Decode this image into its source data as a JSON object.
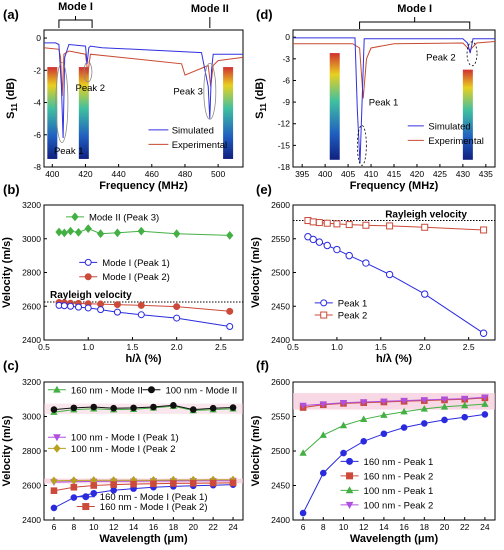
{
  "figure": {
    "panel_letters": [
      "(a)",
      "(b)",
      "(c)",
      "(d)",
      "(e)",
      "(f)"
    ],
    "colors": {
      "simulated": "#3030e0",
      "experimental": "#c84a32",
      "mode2": "#3aa83a",
      "blue": "#2a2adf",
      "red": "#cc4a3a",
      "green": "#44b044",
      "purple": "#b050e0",
      "olive": "#b8a020",
      "black": "#111111",
      "shade": "#f4c8d8"
    }
  },
  "chart_data": [
    {
      "id": "a",
      "type": "line",
      "xlabel": "Frequency (MHz)",
      "ylabel": "S11 (dB)",
      "xlim": [
        395,
        515
      ],
      "ylim": [
        -8,
        0.5
      ],
      "xticks": [
        400,
        420,
        440,
        460,
        480,
        500
      ],
      "yticks": [
        0,
        -2,
        -4,
        -6,
        -8
      ],
      "annotations": [
        "Mode I",
        "Mode II",
        "Peak 1",
        "Peak 2",
        "Peak 3"
      ],
      "legend": [
        "Simulated",
        "Experimental"
      ],
      "legend_position": "bottom-right",
      "series": [
        {
          "name": "Simulated",
          "x": [
            395,
            402,
            404,
            405.5,
            406.5,
            407.5,
            410,
            420,
            421,
            422,
            423,
            430,
            490,
            494,
            495,
            496,
            497,
            500,
            515
          ],
          "y": [
            -0.3,
            -0.3,
            -0.4,
            -3.0,
            -6.2,
            -1.2,
            -0.4,
            -0.5,
            -1.6,
            -0.6,
            -0.5,
            -0.6,
            -0.9,
            -3.0,
            -5.0,
            -2.0,
            -1.0,
            -1.0,
            -1.0
          ]
        },
        {
          "name": "Experimental",
          "x": [
            395,
            404,
            405,
            406,
            407,
            410,
            420,
            421.5,
            423,
            460,
            478,
            480,
            494,
            495.5,
            497,
            500,
            515
          ],
          "y": [
            -0.6,
            -0.7,
            -1.2,
            -3.6,
            -1.0,
            -0.8,
            -1.0,
            -2.2,
            -1.0,
            -1.4,
            -1.6,
            -2.3,
            -1.7,
            -3.0,
            -1.7,
            -1.4,
            -1.2
          ]
        }
      ]
    },
    {
      "id": "b",
      "type": "scatter",
      "xlabel": "h/λ (%)",
      "ylabel": "Velocity (m/s)",
      "xlim": [
        0.5,
        2.75
      ],
      "ylim": [
        2400,
        3200
      ],
      "xticks": [
        0.5,
        1.0,
        1.5,
        2.0,
        2.5
      ],
      "yticks": [
        2400,
        2600,
        2800,
        3000,
        3200
      ],
      "reference_line": {
        "label": "Rayleigh velocity",
        "value": 2625
      },
      "legend_position": "right",
      "series": [
        {
          "name": "Mode II (Peak 3)",
          "x": [
            0.67,
            0.73,
            0.8,
            0.89,
            1.0,
            1.14,
            1.33,
            1.6,
            2.0,
            2.6
          ],
          "y": [
            3040,
            3035,
            3045,
            3038,
            3060,
            3030,
            3035,
            3045,
            3030,
            3020
          ]
        },
        {
          "name": "Mode I (Peak 1)",
          "x": [
            0.67,
            0.73,
            0.8,
            0.89,
            1.0,
            1.14,
            1.33,
            1.6,
            2.0,
            2.6
          ],
          "y": [
            2605,
            2603,
            2600,
            2595,
            2590,
            2580,
            2565,
            2550,
            2530,
            2480
          ]
        },
        {
          "name": "Mode I (Peak 2)",
          "x": [
            0.67,
            0.73,
            0.8,
            0.89,
            1.0,
            1.14,
            1.33,
            1.6,
            2.0,
            2.6
          ],
          "y": [
            2622,
            2620,
            2618,
            2617,
            2615,
            2613,
            2610,
            2605,
            2598,
            2570
          ]
        }
      ]
    },
    {
      "id": "c",
      "type": "line",
      "xlabel": "Wavelength (μm)",
      "ylabel": "Velocity (m/s)",
      "xlim": [
        5,
        25
      ],
      "ylim": [
        2400,
        3200
      ],
      "xticks": [
        6,
        8,
        10,
        12,
        14,
        16,
        18,
        20,
        22,
        24
      ],
      "yticks": [
        2400,
        2600,
        2800,
        3000,
        3200
      ],
      "series": [
        {
          "name": "160 nm - Mode II",
          "x": [
            6,
            8,
            10,
            12,
            14,
            16,
            18,
            20,
            22,
            24
          ],
          "y": [
            3025,
            3040,
            3045,
            3040,
            3042,
            3050,
            3060,
            3035,
            3040,
            3045
          ]
        },
        {
          "name": "100 nm - Mode II",
          "x": [
            6,
            8,
            10,
            12,
            14,
            16,
            18,
            20,
            22,
            24
          ],
          "y": [
            3040,
            3050,
            3055,
            3048,
            3050,
            3055,
            3065,
            3040,
            3048,
            3052
          ]
        },
        {
          "name": "100 nm - Mode I (Peak 1)",
          "x": [
            6,
            8,
            10,
            12,
            14,
            16,
            18,
            20,
            22,
            24
          ],
          "y": [
            2620,
            2622,
            2624,
            2625,
            2625,
            2626,
            2626,
            2627,
            2627,
            2628
          ]
        },
        {
          "name": "100 nm - Mode I (Peak 2",
          "x": [
            6,
            8,
            10,
            12,
            14,
            16,
            18,
            20,
            22,
            24
          ],
          "y": [
            2628,
            2629,
            2630,
            2630,
            2631,
            2631,
            2632,
            2632,
            2633,
            2633
          ]
        },
        {
          "name": "160 nm - Mode I (Peak 1)",
          "x": [
            6,
            8,
            10,
            12,
            14,
            16,
            18,
            20,
            22,
            24
          ],
          "y": [
            2470,
            2530,
            2555,
            2572,
            2582,
            2590,
            2595,
            2598,
            2602,
            2605
          ]
        },
        {
          "name": "160 nm - Mode I (Peak 2)",
          "x": [
            6,
            8,
            10,
            12,
            14,
            16,
            18,
            20,
            22,
            24
          ],
          "y": [
            2570,
            2590,
            2600,
            2605,
            2608,
            2610,
            2612,
            2613,
            2614,
            2615
          ]
        }
      ]
    },
    {
      "id": "d",
      "type": "line",
      "xlabel": "Frequency (MHz)",
      "ylabel": "S11 (dB)",
      "xlim": [
        393,
        437
      ],
      "ylim": [
        -18,
        1
      ],
      "xticks": [
        395,
        400,
        405,
        410,
        415,
        420,
        425,
        430,
        435
      ],
      "yticks": [
        0,
        -3,
        -6,
        -9,
        -12,
        -15,
        -18
      ],
      "annotations": [
        "Mode I",
        "Peak 1",
        "Peak 2"
      ],
      "legend": [
        "Simulated",
        "Experimental"
      ],
      "legend_position": "bottom-right",
      "series": [
        {
          "name": "Simulated",
          "x": [
            393,
            406.5,
            407,
            407.6,
            408.5,
            430,
            431,
            431.6,
            432.2,
            437
          ],
          "y": [
            -0.1,
            -0.1,
            -10,
            -17.5,
            -0.2,
            -0.2,
            -0.8,
            -2.2,
            -0.2,
            -0.2
          ]
        },
        {
          "name": "Experimental",
          "x": [
            393,
            406,
            407.5,
            408.3,
            409,
            410,
            415,
            430,
            431.5,
            433,
            437
          ],
          "y": [
            -0.9,
            -0.9,
            -1.5,
            -8.5,
            -3.0,
            -1.5,
            -0.9,
            -0.8,
            -1.8,
            -0.8,
            -0.6
          ]
        }
      ]
    },
    {
      "id": "e",
      "type": "scatter",
      "xlabel": "h/λ (%)",
      "ylabel": "Velocity (m/s)",
      "xlim": [
        0.5,
        2.8
      ],
      "ylim": [
        2400,
        2600
      ],
      "xticks": [
        0.5,
        1.0,
        1.5,
        2.0,
        2.5
      ],
      "yticks": [
        2400,
        2450,
        2500,
        2550,
        2600
      ],
      "reference_line": {
        "label": "Rayleigh velocity",
        "value": 2577
      },
      "legend_position": "bottom-left",
      "series": [
        {
          "name": "Peak 1",
          "x": [
            0.67,
            0.73,
            0.8,
            0.89,
            1.0,
            1.14,
            1.33,
            1.6,
            2.0,
            2.67
          ],
          "y": [
            2553,
            2549,
            2545,
            2540,
            2534,
            2525,
            2514,
            2497,
            2468,
            2410
          ]
        },
        {
          "name": "Peak 2",
          "x": [
            0.67,
            0.73,
            0.8,
            0.89,
            1.0,
            1.14,
            1.33,
            1.6,
            2.0,
            2.67
          ],
          "y": [
            2577,
            2575,
            2574,
            2573,
            2572,
            2571,
            2570,
            2569,
            2567,
            2563
          ]
        }
      ]
    },
    {
      "id": "f",
      "type": "line",
      "xlabel": "Wavelength (μm)",
      "ylabel": "Velocity (m/s)",
      "xlim": [
        5,
        25
      ],
      "ylim": [
        2400,
        2600
      ],
      "xticks": [
        6,
        8,
        10,
        12,
        14,
        16,
        18,
        20,
        22,
        24
      ],
      "yticks": [
        2400,
        2450,
        2500,
        2550,
        2600
      ],
      "legend_position": "bottom-right",
      "series": [
        {
          "name": "160 nm - Peak 1",
          "x": [
            6,
            8,
            10,
            12,
            14,
            16,
            18,
            20,
            22,
            24
          ],
          "y": [
            2410,
            2468,
            2497,
            2514,
            2525,
            2534,
            2540,
            2545,
            2549,
            2553
          ]
        },
        {
          "name": "160 nm - Peak 2",
          "x": [
            6,
            8,
            10,
            12,
            14,
            16,
            18,
            20,
            22,
            24
          ],
          "y": [
            2563,
            2567,
            2569,
            2570,
            2571,
            2572,
            2573,
            2574,
            2575,
            2577
          ]
        },
        {
          "name": "100 nm - Peak 1",
          "x": [
            6,
            8,
            10,
            12,
            14,
            16,
            18,
            20,
            22,
            24
          ],
          "y": [
            2497,
            2523,
            2537,
            2546,
            2552,
            2557,
            2561,
            2564,
            2566,
            2568
          ]
        },
        {
          "name": "100 nm - Peak 2",
          "x": [
            6,
            8,
            10,
            12,
            14,
            16,
            18,
            20,
            22,
            24
          ],
          "y": [
            2566,
            2568,
            2570,
            2571,
            2572,
            2573,
            2574,
            2575,
            2576,
            2578
          ]
        }
      ]
    }
  ]
}
